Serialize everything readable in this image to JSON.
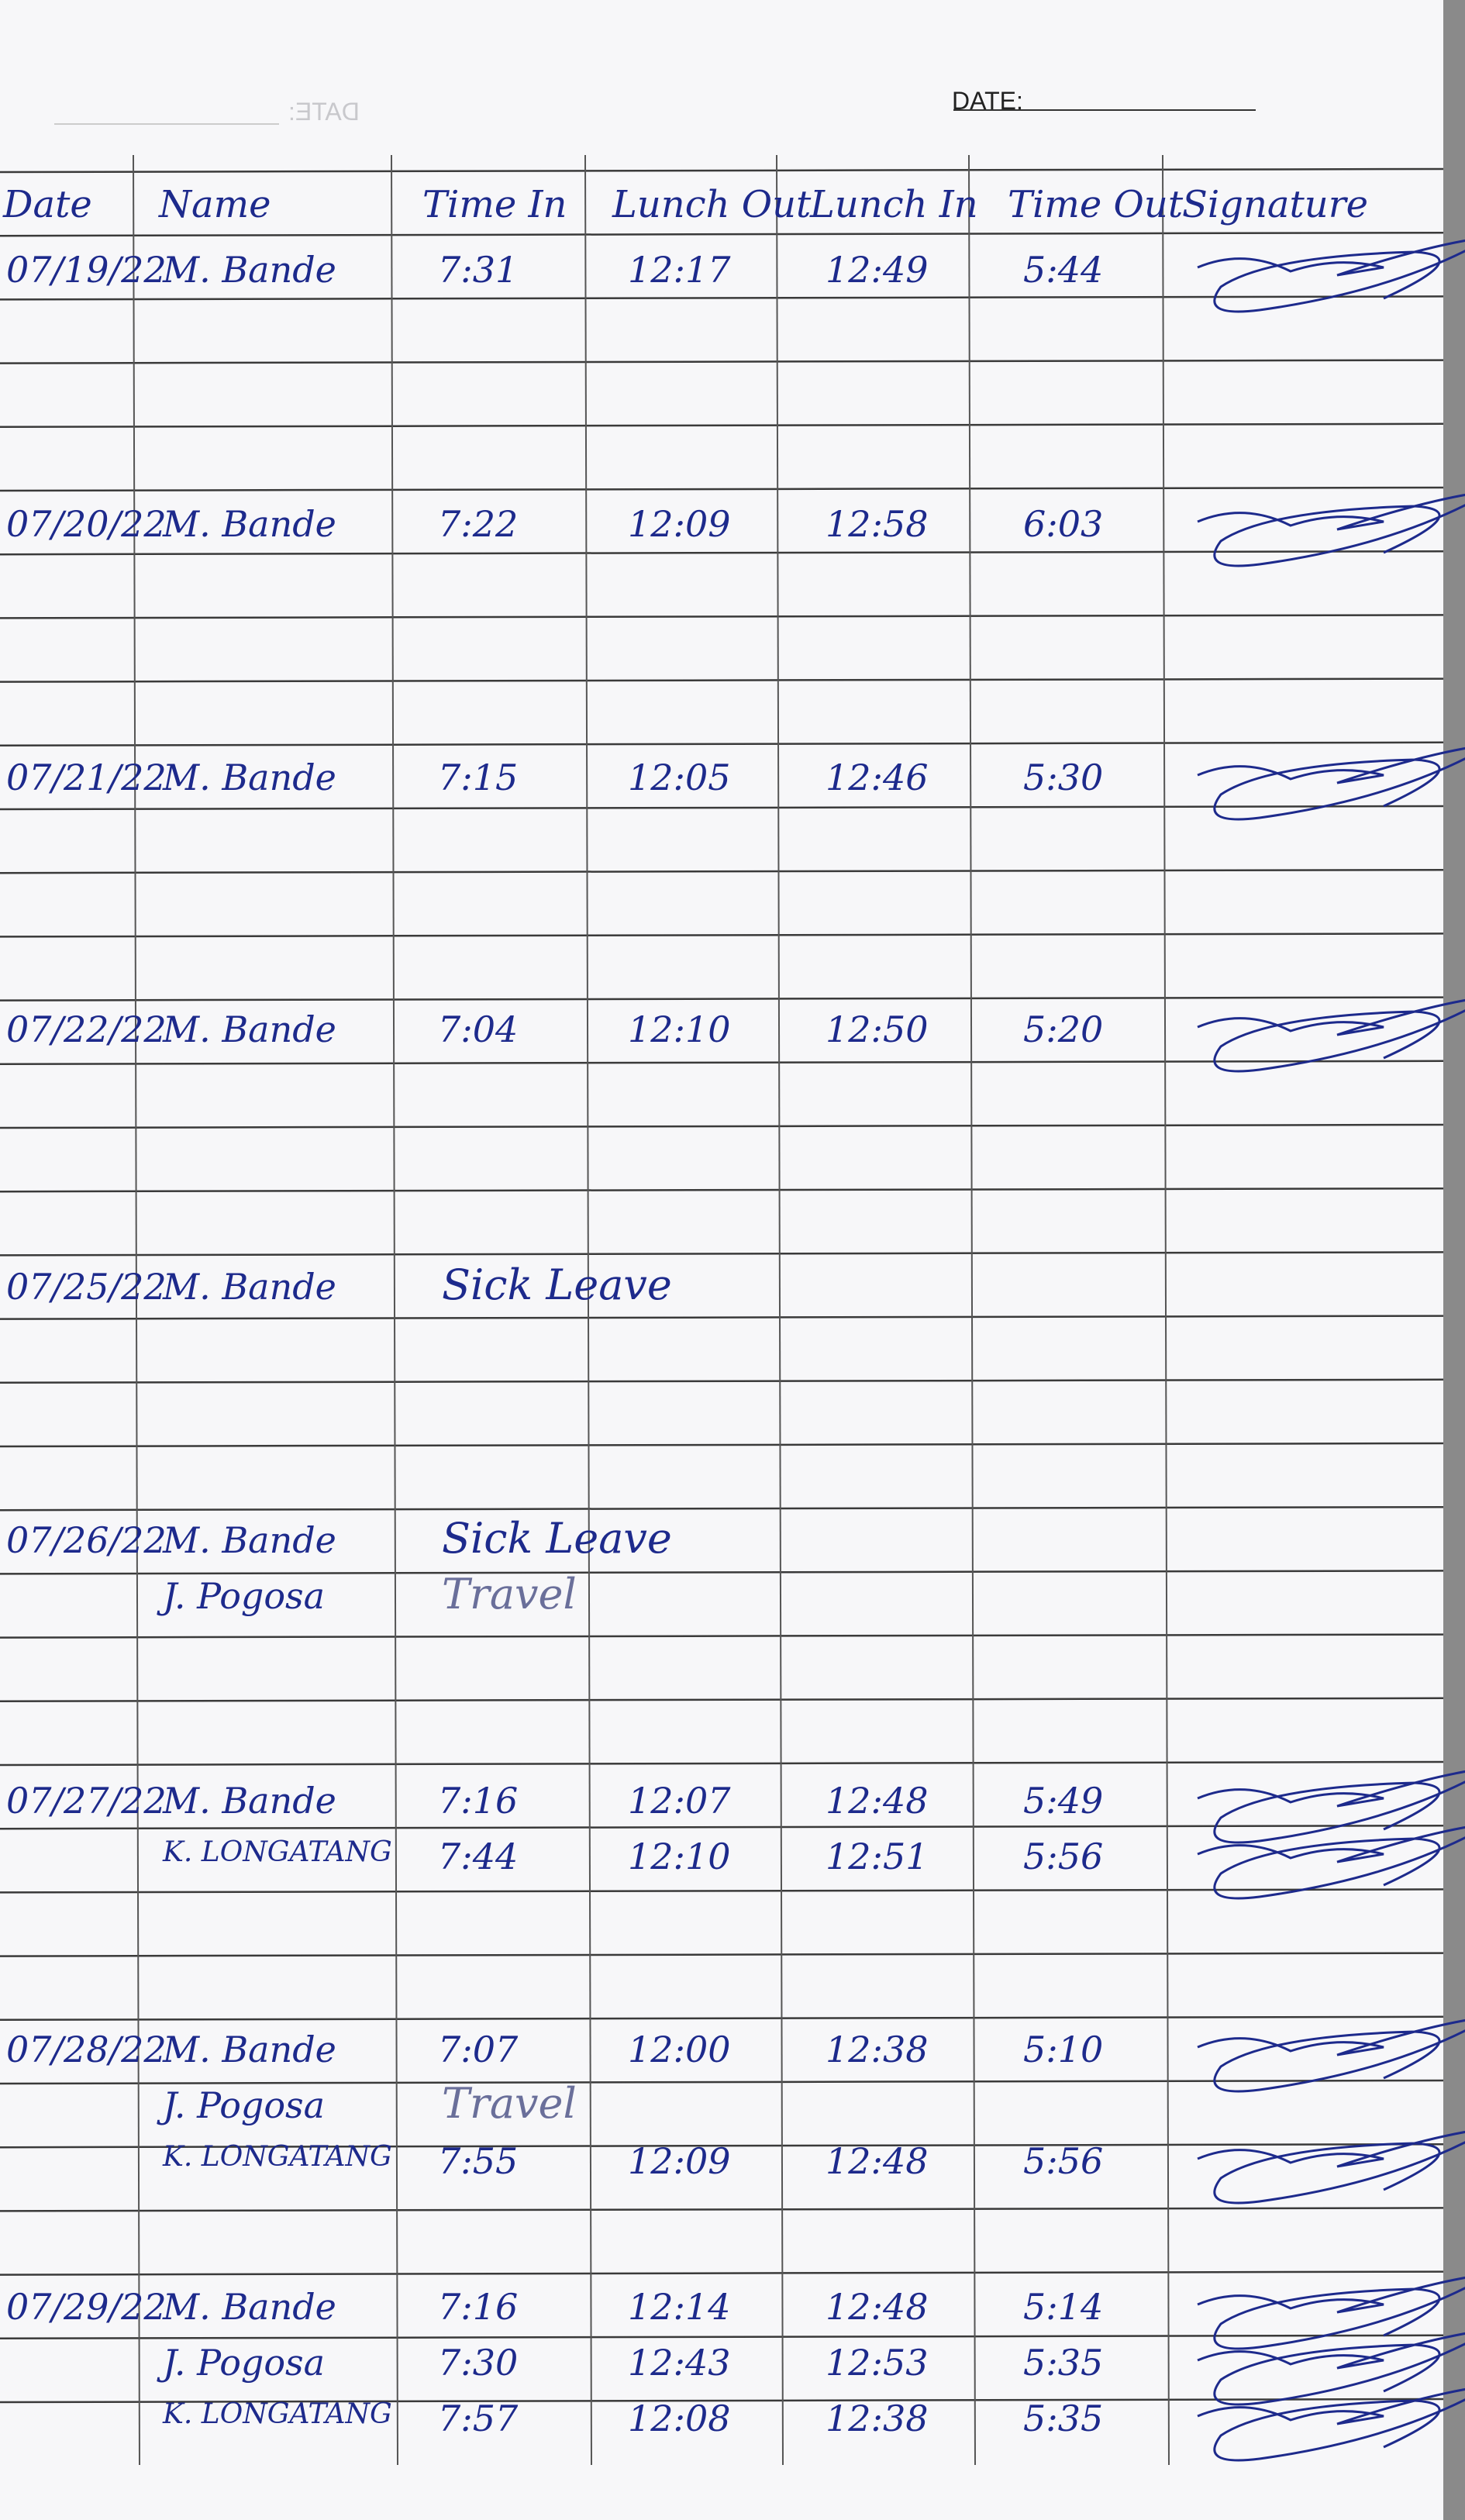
{
  "header": {
    "date_label": "DATE:",
    "bleed_label": "DATE:"
  },
  "table": {
    "columns": [
      "Date",
      "Name",
      "Time In",
      "Lunch Out",
      "Lunch In",
      "Time Out",
      "Signature"
    ],
    "entries": [
      {
        "date": "07/19/22",
        "rows": [
          {
            "name": "M. Bande",
            "time_in": "7:31",
            "lunch_out": "12:17",
            "lunch_in": "12:49",
            "time_out": "5:44"
          }
        ]
      },
      {
        "date": "07/20/22",
        "rows": [
          {
            "name": "M. Bande",
            "time_in": "7:22",
            "lunch_out": "12:09",
            "lunch_in": "12:58",
            "time_out": "6:03"
          }
        ]
      },
      {
        "date": "07/21/22",
        "rows": [
          {
            "name": "M. Bande",
            "time_in": "7:15",
            "lunch_out": "12:05",
            "lunch_in": "12:46",
            "time_out": "5:30"
          }
        ]
      },
      {
        "date": "07/22/22",
        "rows": [
          {
            "name": "M. Bande",
            "time_in": "7:04",
            "lunch_out": "12:10",
            "lunch_in": "12:50",
            "time_out": "5:20"
          }
        ]
      },
      {
        "date": "07/25/22",
        "rows": [
          {
            "name": "M. Bande",
            "note": "Sick Leave"
          }
        ]
      },
      {
        "date": "07/26/22",
        "rows": [
          {
            "name": "M. Bande",
            "note": "Sick Leave"
          },
          {
            "name": "J. Pogosa",
            "note": "Travel"
          }
        ]
      },
      {
        "date": "07/27/22",
        "rows": [
          {
            "name": "M. Bande",
            "time_in": "7:16",
            "lunch_out": "12:07",
            "lunch_in": "12:48",
            "time_out": "5:49"
          },
          {
            "name": "K. LONGATANG",
            "time_in": "7:44",
            "lunch_out": "12:10",
            "lunch_in": "12:51",
            "time_out": "5:56"
          }
        ]
      },
      {
        "date": "07/28/22",
        "rows": [
          {
            "name": "M. Bande",
            "time_in": "7:07",
            "lunch_out": "12:00",
            "lunch_in": "12:38",
            "time_out": "5:10"
          },
          {
            "name": "J. Pogosa",
            "note": "Travel"
          },
          {
            "name": "K. LONGATANG",
            "time_in": "7:55",
            "lunch_out": "12:09",
            "lunch_in": "12:48",
            "time_out": "5:56"
          }
        ]
      },
      {
        "date": "07/29/22",
        "rows": [
          {
            "name": "M. Bande",
            "time_in": "7:16",
            "lunch_out": "12:14",
            "lunch_in": "12:48",
            "time_out": "5:14"
          },
          {
            "name": "J. Pogosa",
            "time_in": "7:30",
            "lunch_out": "12:43",
            "lunch_in": "12:53",
            "time_out": "5:35"
          },
          {
            "name": "K. LONGATANG",
            "time_in": "7:57",
            "lunch_out": "12:08",
            "lunch_in": "12:38",
            "time_out": "5:35"
          }
        ]
      }
    ]
  }
}
